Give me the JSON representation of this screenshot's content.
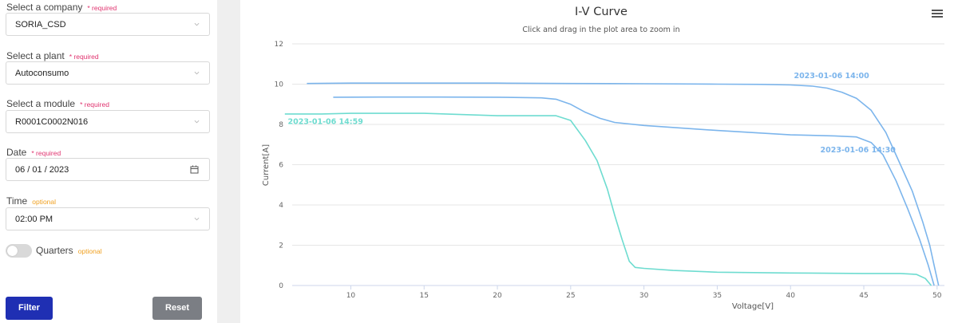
{
  "form": {
    "company": {
      "label": "Select a company",
      "tag": "* required",
      "value": "SORIA_CSD"
    },
    "plant": {
      "label": "Select a plant",
      "tag": "* required",
      "value": "Autoconsumo"
    },
    "module": {
      "label": "Select a module",
      "tag": "* required",
      "value": "R0001C0002N016"
    },
    "date": {
      "label": "Date",
      "tag": "* required",
      "value": "06 / 01 / 2023"
    },
    "time": {
      "label": "Time",
      "tag": "optional",
      "value": "02:00 PM"
    },
    "quarters": {
      "label": "Quarters",
      "tag": "optional",
      "enabled": false
    },
    "filter_label": "Filter",
    "reset_label": "Reset"
  },
  "chart_data": {
    "type": "line",
    "title": "I-V Curve",
    "subtitle": "Click and drag in the plot area to zoom in",
    "xlabel": "Voltage[V]",
    "ylabel": "Current[A]",
    "xlim": [
      6,
      50.5
    ],
    "ylim": [
      0,
      12
    ],
    "xticks": [
      10,
      15,
      20,
      25,
      30,
      35,
      40,
      45,
      50
    ],
    "yticks": [
      0,
      2,
      4,
      6,
      8,
      10,
      12
    ],
    "grid": true,
    "menu_icon": "hamburger-menu-icon",
    "series": [
      {
        "name": "2023-01-06 14:00",
        "color": "#7cb5ec",
        "x": [
          7.0,
          10.0,
          15.0,
          20.0,
          25.0,
          30.0,
          35.0,
          38.0,
          40.0,
          41.5,
          42.5,
          43.5,
          44.5,
          45.5,
          46.5,
          47.5,
          48.3,
          49.0,
          49.5,
          49.8,
          50.1
        ],
        "y": [
          10.03,
          10.05,
          10.05,
          10.05,
          10.03,
          10.02,
          10.0,
          9.99,
          9.96,
          9.9,
          9.8,
          9.6,
          9.3,
          8.7,
          7.6,
          6.0,
          4.7,
          3.2,
          2.0,
          1.0,
          0.0
        ]
      },
      {
        "name": "2023-01-06 14:30",
        "color": "#7cb5ec",
        "x": [
          8.8,
          12.0,
          16.0,
          20.0,
          23.0,
          24.0,
          25.0,
          26.0,
          27.0,
          28.0,
          30.0,
          35.0,
          40.0,
          43.0,
          44.5,
          45.5,
          46.3,
          47.2,
          48.0,
          48.8,
          49.4,
          49.8
        ],
        "y": [
          9.35,
          9.36,
          9.36,
          9.35,
          9.32,
          9.25,
          9.0,
          8.6,
          8.3,
          8.1,
          7.95,
          7.7,
          7.48,
          7.43,
          7.38,
          7.1,
          6.5,
          5.2,
          3.8,
          2.3,
          1.0,
          0.0
        ]
      },
      {
        "name": "2023-01-06 14:59",
        "color": "#6edcd0",
        "x": [
          5.5,
          8.0,
          10.0,
          15.0,
          20.0,
          24.0,
          25.0,
          26.0,
          26.8,
          27.5,
          28.0,
          28.5,
          29.0,
          29.4,
          30.0,
          32.0,
          35.0,
          40.0,
          45.0,
          47.5,
          48.6,
          49.2,
          49.6
        ],
        "y": [
          8.52,
          8.52,
          8.55,
          8.55,
          8.43,
          8.43,
          8.2,
          7.2,
          6.2,
          4.8,
          3.5,
          2.3,
          1.2,
          0.9,
          0.85,
          0.75,
          0.66,
          0.62,
          0.6,
          0.6,
          0.55,
          0.35,
          0.0
        ]
      }
    ]
  }
}
